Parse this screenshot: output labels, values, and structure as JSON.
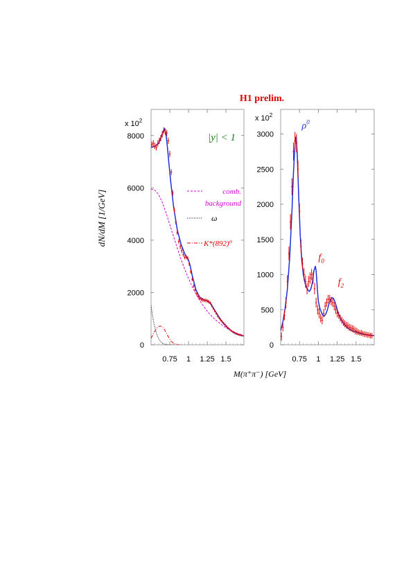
{
  "header": {
    "title": "H1 prelim.",
    "title_color": "#e00000"
  },
  "shared_xlabel": "M(π⁺π⁻) [GeV]",
  "chart_data": [
    {
      "type": "line",
      "panel": "left",
      "ylabel": "dN/dM [1/GeV]",
      "y_multiplier": "x 10",
      "y_multiplier_exp": "2",
      "xlim": [
        0.5,
        1.74
      ],
      "ylim": [
        0,
        9000
      ],
      "x_ticks": [
        0.75,
        1,
        1.25,
        1.5
      ],
      "x_tick_labels": [
        "0.75",
        "1",
        "1.25",
        "1.5"
      ],
      "y_ticks": [
        0,
        2000,
        4000,
        6000,
        8000
      ],
      "y_tick_labels": [
        "0",
        "2000",
        "4000",
        "6000",
        "8000"
      ],
      "rapidity_label": "|y| < 1",
      "rapidity_color": "#1a7f1a",
      "series": [
        {
          "key": "data",
          "style": "points",
          "color": "#e00000",
          "x": [
            0.51,
            0.53,
            0.55,
            0.57,
            0.59,
            0.61,
            0.63,
            0.65,
            0.67,
            0.69,
            0.71,
            0.73,
            0.75,
            0.77,
            0.79,
            0.81,
            0.83,
            0.85,
            0.87,
            0.89,
            0.91,
            0.93,
            0.95,
            0.97,
            0.99,
            1.01,
            1.03,
            1.05,
            1.07,
            1.09,
            1.11,
            1.13,
            1.15,
            1.17,
            1.19,
            1.21,
            1.23,
            1.25,
            1.27,
            1.29,
            1.31,
            1.33,
            1.35,
            1.37,
            1.39,
            1.41,
            1.43,
            1.45,
            1.47,
            1.49,
            1.51,
            1.53,
            1.55,
            1.57,
            1.59,
            1.61,
            1.63,
            1.65,
            1.67,
            1.69,
            1.71
          ],
          "y": [
            7650,
            7700,
            7600,
            7550,
            7700,
            7800,
            7900,
            8050,
            8200,
            8150,
            8100,
            7800,
            7300,
            6600,
            5800,
            5150,
            4700,
            4300,
            3950,
            3750,
            3600,
            3450,
            3350,
            3350,
            3300,
            3100,
            2800,
            2500,
            2250,
            2100,
            1950,
            1850,
            1780,
            1740,
            1720,
            1700,
            1700,
            1680,
            1650,
            1600,
            1500,
            1400,
            1300,
            1200,
            1100,
            1020,
            950,
            880,
            820,
            760,
            700,
            640,
            590,
            540,
            500,
            470,
            440,
            410,
            390,
            380,
            360
          ],
          "err": [
            120,
            120,
            120,
            120,
            120,
            120,
            120,
            120,
            120,
            120,
            120,
            120,
            120,
            110,
            110,
            100,
            100,
            90,
            90,
            90,
            90,
            80,
            80,
            80,
            80,
            80,
            80,
            70,
            70,
            70,
            70,
            70,
            70,
            70,
            70,
            70,
            70,
            70,
            70,
            60,
            60,
            60,
            60,
            60,
            60,
            50,
            50,
            50,
            50,
            50,
            50,
            40,
            40,
            40,
            40,
            40,
            40,
            40,
            40,
            40,
            40
          ]
        },
        {
          "key": "fit",
          "style": "solid",
          "color": "#1f2fd6",
          "x": [
            0.5,
            0.55,
            0.6,
            0.63,
            0.66,
            0.68,
            0.7,
            0.72,
            0.74,
            0.76,
            0.8,
            0.85,
            0.9,
            0.95,
            0.98,
            1.0,
            1.02,
            1.05,
            1.1,
            1.15,
            1.2,
            1.25,
            1.3,
            1.35,
            1.4,
            1.45,
            1.5,
            1.55,
            1.6,
            1.65,
            1.7,
            1.74
          ],
          "y": [
            7550,
            7580,
            7700,
            7900,
            8150,
            8250,
            8050,
            7500,
            6900,
            6300,
            5300,
            4400,
            3850,
            3480,
            3340,
            3240,
            3050,
            2650,
            2100,
            1820,
            1720,
            1680,
            1560,
            1320,
            1090,
            880,
            710,
            580,
            470,
            400,
            360,
            340
          ]
        },
        {
          "key": "comb_background",
          "name": "comb. background",
          "style": "dashed",
          "color": "#d400d4",
          "x": [
            0.5,
            0.55,
            0.6,
            0.65,
            0.7,
            0.75,
            0.8,
            0.85,
            0.9,
            0.95,
            1.0,
            1.05,
            1.1,
            1.15,
            1.2,
            1.25,
            1.3,
            1.35,
            1.4,
            1.45,
            1.5,
            1.55,
            1.6,
            1.65,
            1.7,
            1.74
          ],
          "y": [
            5950,
            5920,
            5750,
            5450,
            5050,
            4600,
            4150,
            3700,
            3280,
            2890,
            2540,
            2220,
            1940,
            1700,
            1480,
            1290,
            1120,
            980,
            860,
            750,
            650,
            570,
            500,
            440,
            390,
            350
          ]
        },
        {
          "key": "omega",
          "name": "ω",
          "style": "dotted",
          "color": "#000000",
          "x": [
            0.5,
            0.52,
            0.54,
            0.56,
            0.58,
            0.6,
            0.62,
            0.64,
            0.66,
            0.68,
            0.7,
            0.72,
            0.74,
            0.76,
            0.78,
            0.8
          ],
          "y": [
            1500,
            1100,
            800,
            560,
            380,
            250,
            150,
            90,
            50,
            25,
            10,
            5,
            0,
            0,
            0,
            0
          ]
        },
        {
          "key": "kstar",
          "name": "K*(892)⁰",
          "style": "dashdot",
          "color": "#e00000",
          "x": [
            0.5,
            0.53,
            0.56,
            0.59,
            0.62,
            0.65,
            0.68,
            0.71,
            0.74,
            0.77,
            0.8,
            0.83,
            0.86,
            0.9
          ],
          "y": [
            250,
            420,
            570,
            680,
            720,
            690,
            580,
            420,
            260,
            140,
            60,
            20,
            0,
            0
          ]
        }
      ],
      "legend": {
        "comb_line1": "comb.",
        "comb_line2": "background",
        "omega": "ω",
        "kstar": "K*(892)⁰"
      }
    },
    {
      "type": "line",
      "panel": "right",
      "y_multiplier": "x 10",
      "y_multiplier_exp": "2",
      "xlim": [
        0.5,
        1.74
      ],
      "ylim": [
        0,
        3350
      ],
      "x_ticks": [
        0.75,
        1,
        1.25,
        1.5
      ],
      "x_tick_labels": [
        "0.75",
        "1",
        "1.25",
        "1.5"
      ],
      "y_ticks": [
        0,
        500,
        1000,
        1500,
        2000,
        2500,
        3000
      ],
      "y_tick_labels": [
        "0",
        "500",
        "1000",
        "1500",
        "2000",
        "2500",
        "3000"
      ],
      "annotations": [
        {
          "key": "rho",
          "text": "ρ",
          "sup": "0",
          "x": 0.78,
          "y": 3080,
          "color": "#1f2fd6"
        },
        {
          "key": "f0",
          "text": "f",
          "sub": "0",
          "x": 1.0,
          "y": 1200,
          "color": "#e00000"
        },
        {
          "key": "f2",
          "text": "f",
          "sub": "2",
          "x": 1.26,
          "y": 850,
          "color": "#e00000"
        }
      ],
      "series": [
        {
          "key": "data",
          "style": "points",
          "color": "#e00000",
          "x": [
            0.51,
            0.53,
            0.55,
            0.57,
            0.59,
            0.61,
            0.63,
            0.65,
            0.67,
            0.69,
            0.71,
            0.73,
            0.75,
            0.77,
            0.79,
            0.81,
            0.83,
            0.85,
            0.87,
            0.89,
            0.91,
            0.93,
            0.95,
            0.97,
            0.99,
            1.01,
            1.03,
            1.05,
            1.07,
            1.09,
            1.11,
            1.13,
            1.15,
            1.17,
            1.19,
            1.21,
            1.23,
            1.25,
            1.27,
            1.29,
            1.31,
            1.33,
            1.35,
            1.37,
            1.39,
            1.41,
            1.43,
            1.45,
            1.47,
            1.49,
            1.51,
            1.53,
            1.55,
            1.57,
            1.59,
            1.61,
            1.63,
            1.65,
            1.67,
            1.69,
            1.71
          ],
          "y": [
            120,
            250,
            420,
            600,
            900,
            1300,
            1750,
            2250,
            2750,
            2900,
            2870,
            2500,
            1900,
            1400,
            1150,
            1000,
            900,
            800,
            900,
            950,
            1000,
            950,
            800,
            600,
            500,
            450,
            380,
            350,
            450,
            550,
            600,
            650,
            650,
            620,
            600,
            550,
            500,
            450,
            420,
            380,
            350,
            320,
            300,
            280,
            270,
            250,
            240,
            230,
            220,
            200,
            190,
            180,
            170,
            170,
            160,
            150,
            150,
            140,
            140,
            130,
            130
          ],
          "err": [
            60,
            60,
            70,
            80,
            90,
            100,
            110,
            120,
            130,
            130,
            130,
            120,
            110,
            100,
            90,
            90,
            90,
            80,
            80,
            80,
            80,
            80,
            80,
            70,
            70,
            70,
            60,
            60,
            60,
            60,
            60,
            60,
            60,
            60,
            60,
            60,
            60,
            60,
            50,
            50,
            50,
            50,
            50,
            50,
            50,
            50,
            50,
            50,
            50,
            50,
            50,
            40,
            40,
            40,
            40,
            40,
            40,
            40,
            40,
            40,
            40
          ]
        },
        {
          "key": "fit",
          "style": "solid",
          "color": "#1f2fd6",
          "x": [
            0.5,
            0.53,
            0.56,
            0.59,
            0.62,
            0.65,
            0.67,
            0.69,
            0.7,
            0.71,
            0.72,
            0.74,
            0.76,
            0.78,
            0.8,
            0.83,
            0.86,
            0.88,
            0.9,
            0.92,
            0.94,
            0.96,
            0.97,
            0.98,
            0.99,
            1.0,
            1.02,
            1.04,
            1.06,
            1.08,
            1.1,
            1.12,
            1.14,
            1.16,
            1.18,
            1.2,
            1.22,
            1.24,
            1.26,
            1.3,
            1.35,
            1.4,
            1.45,
            1.5,
            1.55,
            1.6,
            1.65,
            1.7,
            1.74
          ],
          "y": [
            200,
            330,
            520,
            800,
            1250,
            1900,
            2450,
            2850,
            2960,
            2900,
            2700,
            2100,
            1550,
            1200,
            1000,
            850,
            780,
            760,
            790,
            880,
            1050,
            1120,
            1050,
            900,
            750,
            620,
            520,
            460,
            420,
            410,
            440,
            500,
            580,
            640,
            670,
            660,
            610,
            540,
            460,
            360,
            280,
            230,
            200,
            180,
            160,
            150,
            140,
            135,
            130
          ]
        }
      ]
    }
  ]
}
